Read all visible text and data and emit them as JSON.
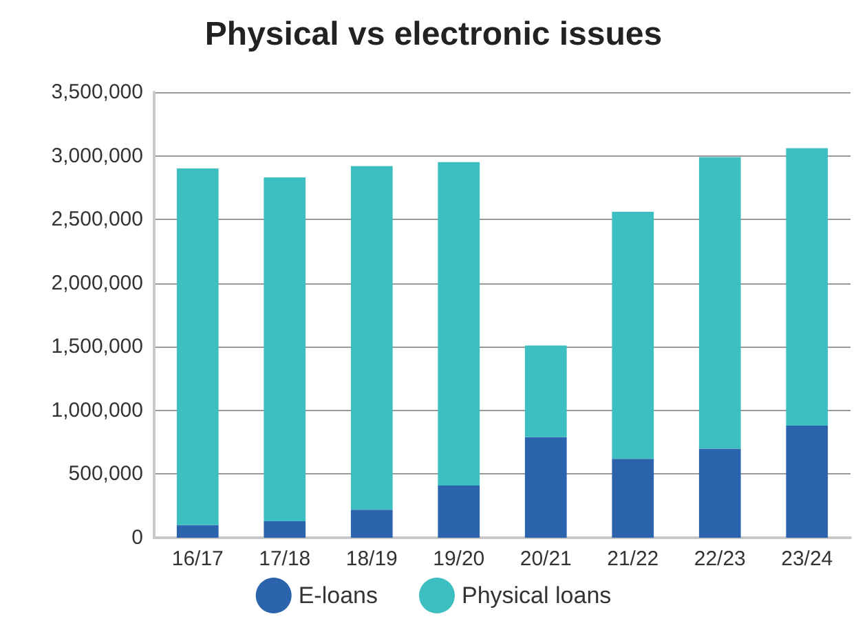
{
  "chart_data": {
    "type": "bar",
    "title": "Physical vs electronic issues",
    "categories": [
      "16/17",
      "17/18",
      "18/19",
      "19/20",
      "20/21",
      "21/22",
      "22/23",
      "23/24"
    ],
    "series": [
      {
        "name": "E-loans",
        "color": "#2b63ad",
        "values": [
          100000,
          130000,
          220000,
          410000,
          790000,
          620000,
          700000,
          880000
        ]
      },
      {
        "name": "Physical loans",
        "color": "#3dbfc1",
        "values": [
          2800000,
          2700000,
          2700000,
          2540000,
          720000,
          1940000,
          2290000,
          2180000
        ]
      }
    ],
    "stacked": true,
    "ylim": [
      0,
      3500000
    ],
    "yticks": [
      0,
      {
        "value": 500000,
        "label": "500,000"
      },
      {
        "value": 1000000,
        "label": "1,000,000"
      },
      {
        "value": 1500000,
        "label": "1,500,000"
      },
      {
        "value": 2000000,
        "label": "2,000,000"
      },
      {
        "value": 2500000,
        "label": "2,500,000"
      },
      {
        "value": 3000000,
        "label": "3,000,000"
      },
      {
        "value": 3500000,
        "label": "3,500,000"
      }
    ],
    "grid": "y",
    "legend": "bottom"
  }
}
